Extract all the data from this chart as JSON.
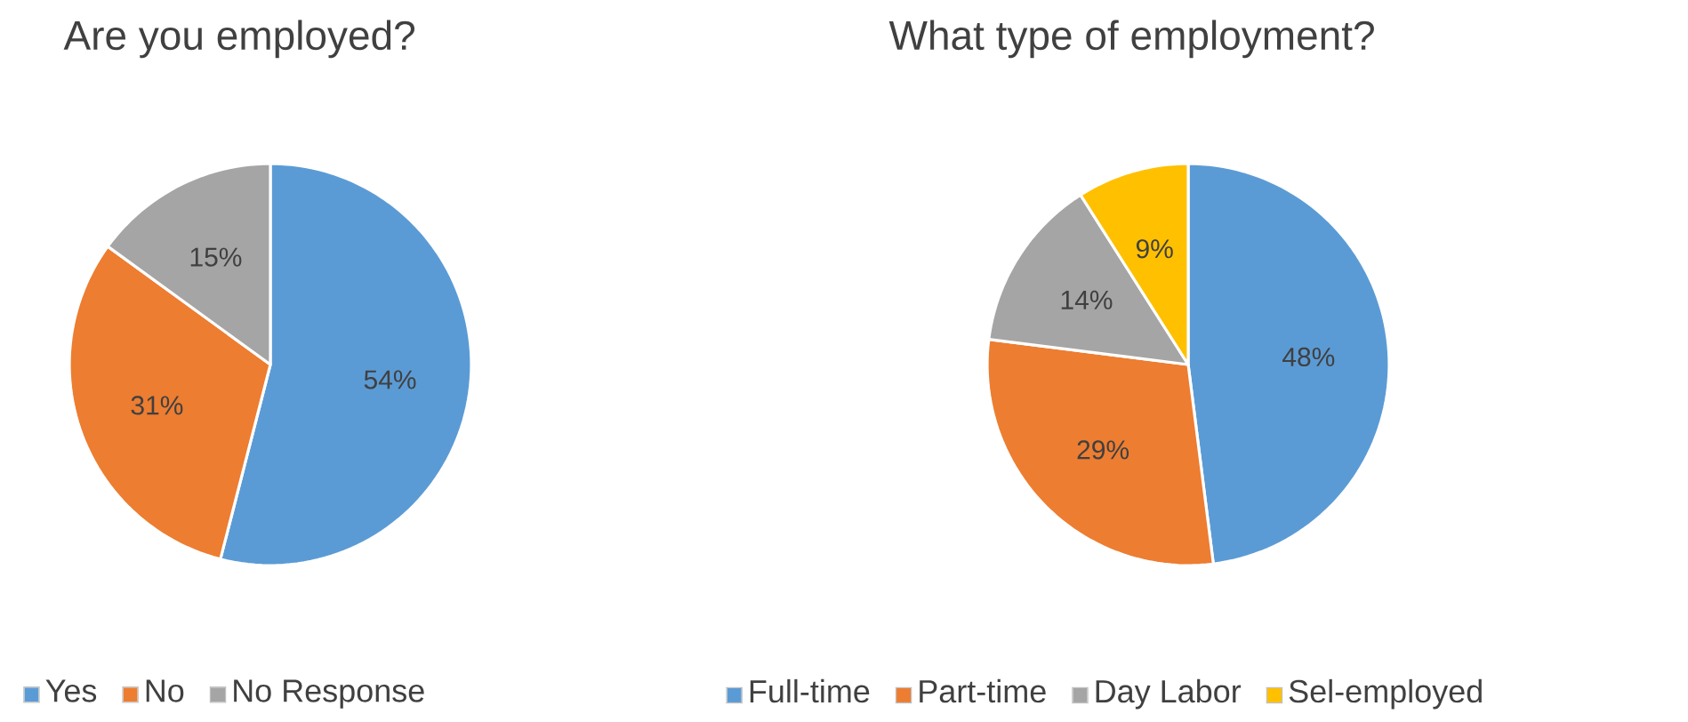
{
  "chart_data": [
    {
      "type": "pie",
      "title": "Are you employed?",
      "categories": [
        "Yes",
        "No",
        "No Response"
      ],
      "values": [
        54,
        31,
        15
      ],
      "value_labels": [
        "54%",
        "31%",
        "15%"
      ],
      "colors": [
        "#5b9bd5",
        "#ed7d31",
        "#a5a5a5"
      ],
      "legend": "bottom"
    },
    {
      "type": "pie",
      "title": "What type of employment?",
      "categories": [
        "Full-time",
        "Part-time",
        "Day Labor",
        "Sel-employed"
      ],
      "values": [
        48,
        29,
        14,
        9
      ],
      "value_labels": [
        "48%",
        "29%",
        "14%",
        "9%"
      ],
      "colors": [
        "#5b9bd5",
        "#ed7d31",
        "#a5a5a5",
        "#ffc000"
      ],
      "legend": "bottom"
    }
  ]
}
